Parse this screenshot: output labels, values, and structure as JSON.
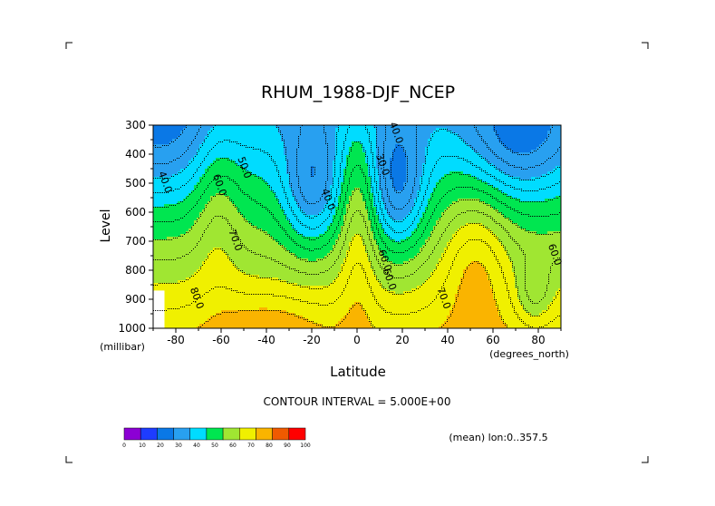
{
  "chart_data": {
    "type": "heatmap",
    "title": "RHUM_1988-DJF_NCEP",
    "xlabel": "Latitude",
    "ylabel": "Level",
    "x_units": "(degrees_north)",
    "y_units": "(millibar)",
    "x_range": [
      -90,
      90
    ],
    "y_range": [
      300,
      1000
    ],
    "x_ticks": [
      "-80",
      "-60",
      "-40",
      "-20",
      "0",
      "20",
      "40",
      "60",
      "80"
    ],
    "x_tick_values": [
      -80,
      -60,
      -40,
      -20,
      0,
      20,
      40,
      60,
      80
    ],
    "y_ticks": [
      "300",
      "400",
      "500",
      "600",
      "700",
      "800",
      "900",
      "1000"
    ],
    "y_tick_values": [
      300,
      400,
      500,
      600,
      700,
      800,
      900,
      1000
    ],
    "contour_interval": "CONTOUR INTERVAL = 5.000E+00",
    "footnote": "(mean) lon:0..357.5",
    "contour_labels": [
      {
        "text": "40.0",
        "x": -86,
        "p": 500
      },
      {
        "text": "50.0",
        "x": -51,
        "p": 450
      },
      {
        "text": "60.0",
        "x": -62,
        "p": 510
      },
      {
        "text": "70.0",
        "x": -55,
        "p": 700
      },
      {
        "text": "80.0",
        "x": -72,
        "p": 900
      },
      {
        "text": "40.0",
        "x": -14,
        "p": 560
      },
      {
        "text": "40.0",
        "x": 16,
        "p": 330
      },
      {
        "text": "30.0",
        "x": 10,
        "p": 440
      },
      {
        "text": "60.0",
        "x": 11,
        "p": 770
      },
      {
        "text": "60.0",
        "x": 13,
        "p": 835
      },
      {
        "text": "70.0",
        "x": 37,
        "p": 900
      },
      {
        "text": "60.0",
        "x": 86,
        "p": 750
      }
    ],
    "colorbar": {
      "levels": [
        "0",
        "10",
        "20",
        "30",
        "40",
        "50",
        "60",
        "70",
        "80",
        "90",
        "100"
      ],
      "colors": [
        "#8c00d4",
        "#1e3cff",
        "#0a78e6",
        "#28a0f0",
        "#00dcff",
        "#00e650",
        "#a0e632",
        "#f0f000",
        "#fab400",
        "#f05a00",
        "#ff0000"
      ]
    }
  }
}
